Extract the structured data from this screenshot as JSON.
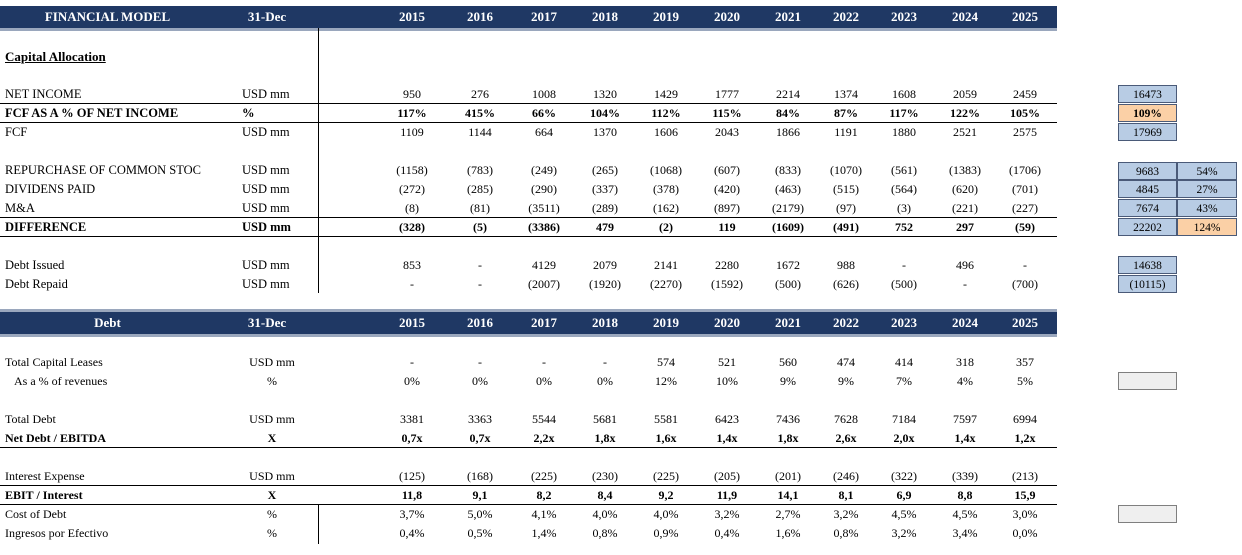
{
  "header1": {
    "title": "FINANCIAL MODEL",
    "date": "31-Dec",
    "years": [
      "2015",
      "2016",
      "2017",
      "2018",
      "2019",
      "2020",
      "2021",
      "2022",
      "2023",
      "2024",
      "2025"
    ]
  },
  "section1_title": "Capital Allocation",
  "cap_rows": [
    {
      "label": "NET INCOME",
      "unit": "USD mm",
      "values": [
        "950",
        "276",
        "1008",
        "1320",
        "1429",
        "1777",
        "2214",
        "1374",
        "1608",
        "2059",
        "2459"
      ]
    },
    {
      "label": "FCF AS A % OF NET INCOME",
      "unit": "%",
      "values": [
        "117%",
        "415%",
        "66%",
        "104%",
        "112%",
        "115%",
        "84%",
        "87%",
        "117%",
        "122%",
        "105%"
      ]
    },
    {
      "label": "FCF",
      "unit": "USD mm",
      "values": [
        "1109",
        "1144",
        "664",
        "1370",
        "1606",
        "2043",
        "1866",
        "1191",
        "1880",
        "2521",
        "2575"
      ]
    },
    {
      "label": "REPURCHASE OF COMMON STOC",
      "unit": "USD mm",
      "values": [
        "(1158)",
        "(783)",
        "(249)",
        "(265)",
        "(1068)",
        "(607)",
        "(833)",
        "(1070)",
        "(561)",
        "(1383)",
        "(1706)"
      ]
    },
    {
      "label": "DIVIDENS PAID",
      "unit": "USD mm",
      "values": [
        "(272)",
        "(285)",
        "(290)",
        "(337)",
        "(378)",
        "(420)",
        "(463)",
        "(515)",
        "(564)",
        "(620)",
        "(701)"
      ]
    },
    {
      "label": "M&A",
      "unit": "USD mm",
      "values": [
        "(8)",
        "(81)",
        "(3511)",
        "(289)",
        "(162)",
        "(897)",
        "(2179)",
        "(97)",
        "(3)",
        "(221)",
        "(227)"
      ]
    },
    {
      "label": "DIFFERENCE",
      "unit": "USD mm",
      "values": [
        "(328)",
        "(5)",
        "(3386)",
        "479",
        "(2)",
        "119",
        "(1609)",
        "(491)",
        "752",
        "297",
        "(59)"
      ]
    },
    {
      "label": "Debt Issued",
      "unit": "USD mm",
      "values": [
        "853",
        "-",
        "4129",
        "2079",
        "2141",
        "2280",
        "1672",
        "988",
        "-",
        "496",
        "-"
      ]
    },
    {
      "label": "Debt Repaid",
      "unit": "USD mm",
      "values": [
        "-",
        "-",
        "(2007)",
        "(1920)",
        "(2270)",
        "(1592)",
        "(500)",
        "(626)",
        "(500)",
        "-",
        "(700)"
      ]
    }
  ],
  "side_totals": {
    "net_income": "16473",
    "fcf_pct": "109%",
    "fcf": "17969",
    "repurchase": "9683",
    "repurchase_pct": "54%",
    "dividends": "4845",
    "dividends_pct": "27%",
    "ma": "7674",
    "ma_pct": "43%",
    "difference": "22202",
    "difference_pct": "124%",
    "debt_issued": "14638",
    "debt_repaid": "(10115)"
  },
  "header2": {
    "title": "Debt",
    "date": "31-Dec",
    "years": [
      "2015",
      "2016",
      "2017",
      "2018",
      "2019",
      "2020",
      "2021",
      "2022",
      "2023",
      "2024",
      "2025"
    ]
  },
  "debt_rows": [
    {
      "label": "Total Capital Leases",
      "unit": "USD mm",
      "values": [
        "-",
        "-",
        "-",
        "-",
        "574",
        "521",
        "560",
        "474",
        "414",
        "318",
        "357"
      ]
    },
    {
      "label": "As a % of revenues",
      "unit": "%",
      "values": [
        "0%",
        "0%",
        "0%",
        "0%",
        "12%",
        "10%",
        "9%",
        "9%",
        "7%",
        "4%",
        "5%"
      ]
    },
    {
      "label": "Total Debt",
      "unit": "USD mm",
      "values": [
        "3381",
        "3363",
        "5544",
        "5681",
        "5581",
        "6423",
        "7436",
        "7628",
        "7184",
        "7597",
        "6994"
      ]
    },
    {
      "label": "Net Debt / EBITDA",
      "unit": "X",
      "values": [
        "0,7x",
        "0,7x",
        "2,2x",
        "1,8x",
        "1,6x",
        "1,4x",
        "1,8x",
        "2,6x",
        "2,0x",
        "1,4x",
        "1,2x"
      ]
    },
    {
      "label": "Interest Expense",
      "unit": "USD mm",
      "values": [
        "(125)",
        "(168)",
        "(225)",
        "(230)",
        "(225)",
        "(205)",
        "(201)",
        "(246)",
        "(322)",
        "(339)",
        "(213)"
      ]
    },
    {
      "label": "EBIT / Interest",
      "unit": "X",
      "values": [
        "11,8",
        "9,1",
        "8,2",
        "8,4",
        "9,2",
        "11,9",
        "14,1",
        "8,1",
        "6,9",
        "8,8",
        "15,9"
      ]
    },
    {
      "label": "Cost of Debt",
      "unit": "%",
      "values": [
        "3,7%",
        "5,0%",
        "4,1%",
        "4,0%",
        "4,0%",
        "3,2%",
        "2,7%",
        "3,2%",
        "4,5%",
        "4,5%",
        "3,0%"
      ]
    },
    {
      "label": "Ingresos por Efectivo",
      "unit": "%",
      "values": [
        "0,4%",
        "0,5%",
        "1,4%",
        "0,8%",
        "0,9%",
        "0,4%",
        "1,6%",
        "0,8%",
        "3,2%",
        "3,4%",
        "0,0%"
      ]
    }
  ]
}
